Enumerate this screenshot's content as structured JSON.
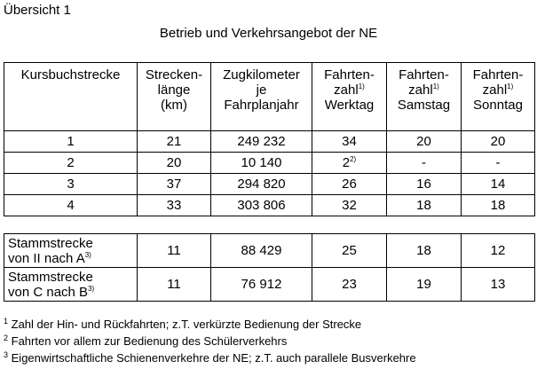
{
  "title": "Übersicht 1",
  "subtitle": "Betrieb und Verkehrsangebot der NE",
  "headers": [
    {
      "lines": [
        "Kursbuchstrecke"
      ]
    },
    {
      "lines": [
        "Strecken-",
        "länge",
        "(km)"
      ]
    },
    {
      "lines": [
        "Zugkilometer",
        "je",
        "Fahrplanjahr"
      ]
    },
    {
      "lines": [
        "Fahrten-",
        "zahl",
        "Werktag"
      ],
      "sup": "1)"
    },
    {
      "lines": [
        "Fahrten-",
        "zahl",
        "Samstag"
      ],
      "sup": "1)"
    },
    {
      "lines": [
        "Fahrten-",
        "zahl",
        "Sonntag"
      ],
      "sup": "1)"
    }
  ],
  "rows": [
    [
      "1",
      "21",
      "249 232",
      "34",
      "20",
      "20"
    ],
    [
      "2",
      "20",
      "10 140",
      "2",
      "-",
      "-"
    ],
    [
      "3",
      "37",
      "294 820",
      "26",
      "16",
      "14"
    ],
    [
      "4",
      "33",
      "303 806",
      "32",
      "18",
      "18"
    ]
  ],
  "row2_werktag_sup": "2)",
  "stamm_rows": [
    {
      "l1": "Stammstrecke",
      "l2": "von II nach A",
      "sup": "3)",
      "vals": [
        "11",
        "88 429",
        "25",
        "18",
        "12"
      ]
    },
    {
      "l1": "Stammstrecke",
      "l2": "von C nach B",
      "sup": "3)",
      "vals": [
        "11",
        "76 912",
        "23",
        "19",
        "13"
      ]
    }
  ],
  "footnotes": [
    {
      "n": "1",
      "text": "Zahl der Hin- und Rückfahrten;  z.T.  verkürzte  Bedienung  der Strecke"
    },
    {
      "n": "2",
      "text": "Fahrten vor allem zur Bedienung des Schülerverkehrs"
    },
    {
      "n": "3",
      "text": "Eigenwirtschaftliche Schienenverkehre  der NE;  z.T.  auch parallele Busverkehre"
    }
  ]
}
